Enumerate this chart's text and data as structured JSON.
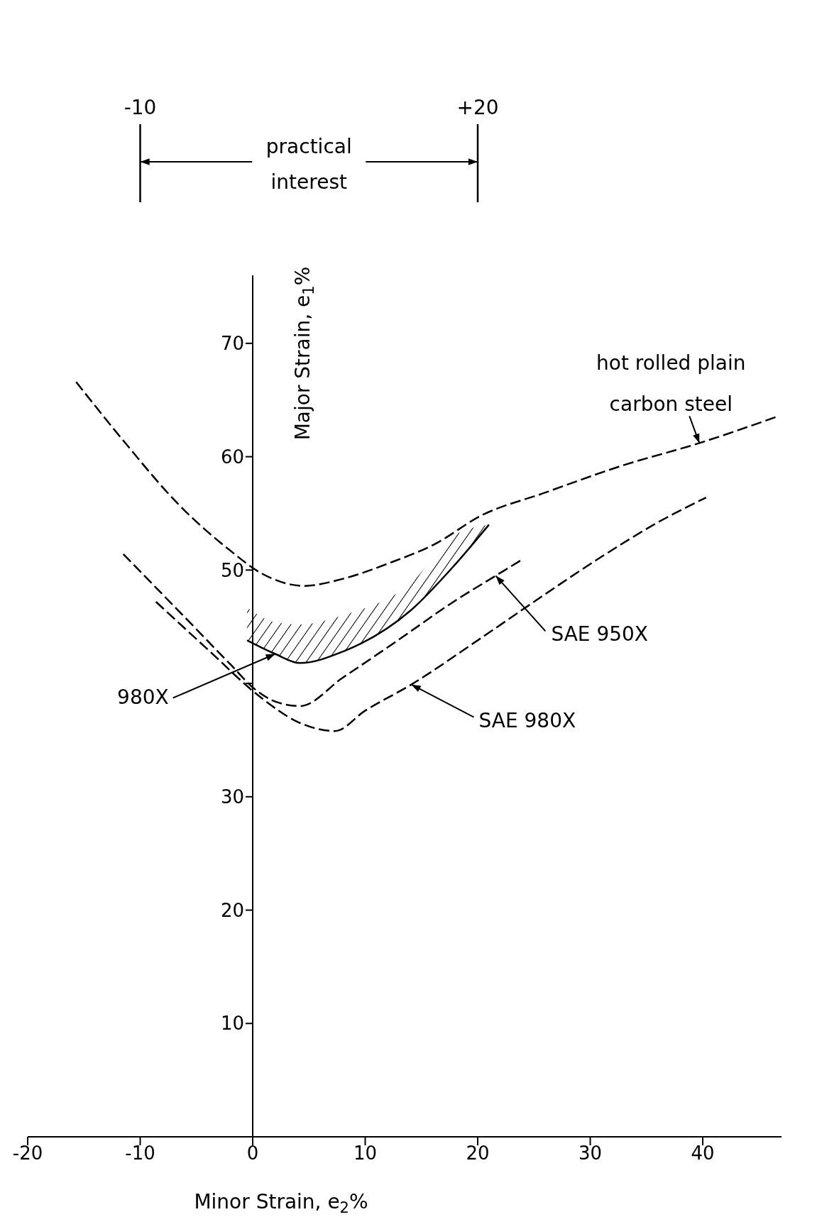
{
  "chart_data": {
    "type": "line",
    "xlabel": "Minor Strain, e$_{2}$%",
    "ylabel": "Major Strain, e$_{1}$%",
    "xlim": [
      -20,
      47
    ],
    "xticks": [
      -20,
      -10,
      0,
      10,
      20,
      30,
      40
    ],
    "ylim": [
      0,
      76
    ],
    "yticks": [
      10,
      20,
      30,
      {
        "value": 40,
        "label": null
      },
      50,
      60,
      70
    ],
    "grid": false,
    "legend": false,
    "marker": "none",
    "annotations": [
      "-10",
      "+20",
      "practical interest"
    ],
    "series": [
      {
        "name": "hot rolled plain carbon steel",
        "color": "#000000",
        "line_style": "dashed",
        "x": [
          -15.7,
          -11.4,
          -6.6,
          -2.1,
          0.8,
          4.6,
          7.9,
          12.1,
          16.2,
          20.3,
          25.9,
          32.8,
          39.7,
          46.5
        ],
        "values": [
          66.6,
          61.3,
          55.8,
          51.8,
          49.7,
          48.6,
          49.2,
          50.6,
          52.3,
          54.8,
          56.8,
          59.2,
          61.2,
          63.5
        ]
      },
      {
        "name": "980X",
        "color": "#000000",
        "line_style": "solid",
        "x": [
          -0.5,
          2,
          4.2,
          8,
          14,
          18,
          21
        ],
        "values": [
          43.8,
          42.6,
          41.8,
          42.8,
          46.4,
          50.5,
          54.0
        ],
        "lower": [
          43.8,
          42.6,
          41.8,
          42.8,
          46.4,
          50.5,
          54.0
        ],
        "upper": [
          46.7,
          45.4,
          45.2,
          46.0,
          48.8,
          53.1,
          54.0
        ]
      },
      {
        "name": "SAE 950X",
        "color": "#000000",
        "line_style": "dashed",
        "x": [
          -11.5,
          -6,
          -2,
          0.3,
          2,
          4.2,
          8,
          12.9,
          18,
          21.6,
          23.9
        ],
        "values": [
          51.4,
          45.8,
          41.7,
          39.4,
          38.4,
          38.0,
          40.5,
          43.8,
          47.3,
          49.5,
          50.9
        ]
      },
      {
        "name": "SAE 980X",
        "color": "#000000",
        "line_style": "dashed",
        "x": [
          -8.6,
          -4,
          0.8,
          4,
          7.3,
          10,
          14.1,
          20,
          25,
          31.2,
          36,
          40.3
        ],
        "values": [
          47.2,
          43.0,
          38.7,
          36.6,
          35.8,
          37.6,
          39.9,
          43.8,
          47.2,
          51.3,
          54.2,
          56.4
        ]
      }
    ]
  }
}
